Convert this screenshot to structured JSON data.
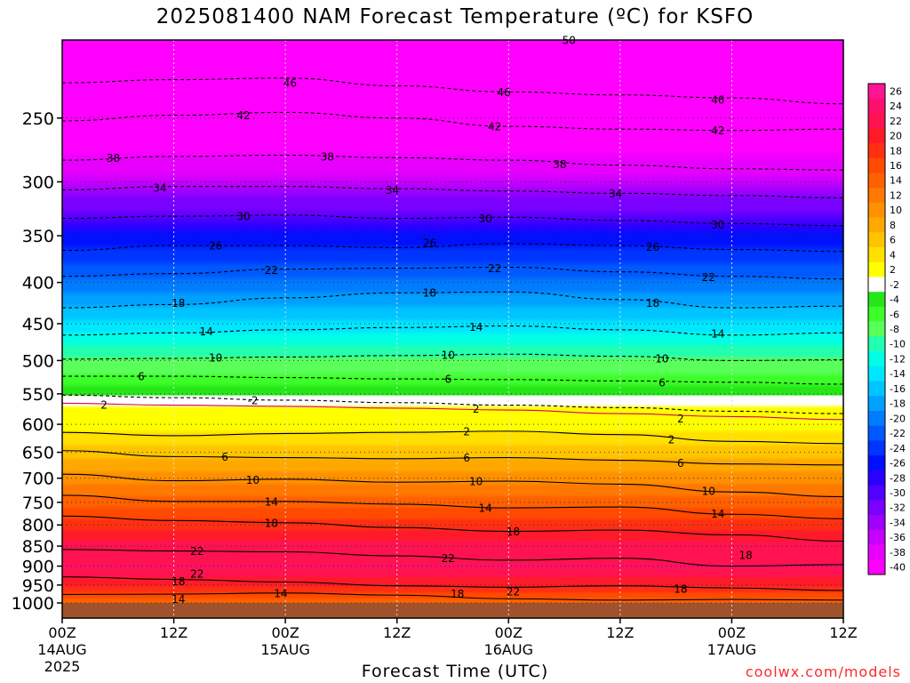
{
  "title": "2025081400 NAM Forecast Temperature (ºC) for KSFO",
  "credit": "coolwx.com/models",
  "chart_data": {
    "type": "heatmap",
    "title": "2025081400 NAM Forecast Temperature (ºC) for KSFO",
    "xlabel": "Forecast Time (UTC)",
    "ylabel": "",
    "x_range_hours": [
      0,
      84
    ],
    "y_range_hpa": [
      200,
      1000
    ],
    "y_scale": "log",
    "x_ticks": [
      {
        "hour": 0,
        "lines": [
          "00Z",
          "14AUG",
          "2025"
        ]
      },
      {
        "hour": 12,
        "lines": [
          "12Z"
        ]
      },
      {
        "hour": 24,
        "lines": [
          "00Z",
          "15AUG"
        ]
      },
      {
        "hour": 36,
        "lines": [
          "12Z"
        ]
      },
      {
        "hour": 48,
        "lines": [
          "00Z",
          "16AUG"
        ]
      },
      {
        "hour": 60,
        "lines": [
          "12Z"
        ]
      },
      {
        "hour": 72,
        "lines": [
          "00Z",
          "17AUG"
        ]
      },
      {
        "hour": 84,
        "lines": [
          "12Z"
        ]
      }
    ],
    "y_ticks": [
      250,
      300,
      350,
      400,
      450,
      500,
      550,
      600,
      650,
      700,
      750,
      800,
      850,
      900,
      950,
      1000
    ],
    "isotherms": [
      {
        "value": 50,
        "p": [
          200,
          200,
          199,
          198,
          199,
          200,
          199,
          198
        ]
      },
      {
        "value": 46,
        "p": [
          226,
          224,
          223,
          228,
          232,
          234,
          236,
          240
        ]
      },
      {
        "value": 42,
        "p": [
          252,
          248,
          246,
          250,
          256,
          258,
          259,
          258
        ]
      },
      {
        "value": 38,
        "p": [
          282,
          279,
          278,
          280,
          282,
          286,
          289,
          290
        ]
      },
      {
        "value": 34,
        "p": [
          307,
          304,
          304,
          306,
          308,
          310,
          312,
          314
        ]
      },
      {
        "value": 30,
        "p": [
          333,
          331,
          330,
          333,
          332,
          335,
          338,
          340
        ]
      },
      {
        "value": 26,
        "p": [
          365,
          360,
          360,
          362,
          358,
          360,
          364,
          366
        ]
      },
      {
        "value": 22,
        "p": [
          393,
          390,
          385,
          384,
          383,
          388,
          393,
          396
        ]
      },
      {
        "value": 18,
        "p": [
          430,
          426,
          418,
          412,
          411,
          420,
          430,
          428
        ]
      },
      {
        "value": 14,
        "p": [
          465,
          462,
          458,
          455,
          453,
          458,
          465,
          462
        ]
      },
      {
        "value": 10,
        "p": [
          498,
          497,
          495,
          493,
          491,
          494,
          500,
          499
        ]
      },
      {
        "value": 6,
        "p": [
          523,
          523,
          525,
          527,
          528,
          530,
          532,
          535
        ]
      },
      {
        "value": 2,
        "p": [
          565,
          568,
          570,
          573,
          576,
          582,
          587,
          592
        ]
      },
      {
        "value": -2,
        "p": [
          552,
          556,
          560,
          564,
          568,
          572,
          578,
          582
        ]
      },
      {
        "value": 2,
        "p": [
          614,
          620,
          616,
          614,
          612,
          618,
          630,
          634
        ]
      },
      {
        "value": 6,
        "p": [
          647,
          658,
          660,
          662,
          660,
          665,
          672,
          674
        ]
      },
      {
        "value": 10,
        "p": [
          692,
          705,
          702,
          708,
          706,
          712,
          728,
          738
        ]
      },
      {
        "value": 14,
        "p": [
          735,
          748,
          748,
          754,
          762,
          760,
          776,
          786
        ]
      },
      {
        "value": 18,
        "p": [
          780,
          790,
          795,
          806,
          815,
          812,
          823,
          838
        ]
      },
      {
        "value": 22,
        "p": [
          858,
          862,
          864,
          874,
          885,
          880,
          900,
          896
        ]
      },
      {
        "value": 18,
        "p": [
          928,
          935,
          942,
          952,
          956,
          952,
          958,
          965
        ]
      },
      {
        "value": 14,
        "p": [
          976,
          975,
          972,
          978,
          988,
          992,
          990,
          992
        ]
      }
    ],
    "isotherm_x_hours": [
      0,
      12,
      24,
      36,
      48,
      60,
      72,
      84
    ],
    "contour_labels": [
      {
        "text": "50",
        "hour": 54.5,
        "p": 200
      },
      {
        "text": "46",
        "hour": 24.5,
        "p": 226
      },
      {
        "text": "46",
        "hour": 47.5,
        "p": 232
      },
      {
        "text": "46",
        "hour": 70.5,
        "p": 237
      },
      {
        "text": "42",
        "hour": 19.5,
        "p": 248
      },
      {
        "text": "42",
        "hour": 46.5,
        "p": 256
      },
      {
        "text": "42",
        "hour": 70.5,
        "p": 259
      },
      {
        "text": "38",
        "hour": 5.5,
        "p": 280
      },
      {
        "text": "38",
        "hour": 28.5,
        "p": 279
      },
      {
        "text": "38",
        "hour": 53.5,
        "p": 285
      },
      {
        "text": "34",
        "hour": 10.5,
        "p": 305
      },
      {
        "text": "34",
        "hour": 35.5,
        "p": 307
      },
      {
        "text": "34",
        "hour": 59.5,
        "p": 310
      },
      {
        "text": "30",
        "hour": 19.5,
        "p": 331
      },
      {
        "text": "30",
        "hour": 45.5,
        "p": 333
      },
      {
        "text": "30",
        "hour": 70.5,
        "p": 339
      },
      {
        "text": "26",
        "hour": 16.5,
        "p": 360
      },
      {
        "text": "26",
        "hour": 39.5,
        "p": 357
      },
      {
        "text": "26",
        "hour": 63.5,
        "p": 361
      },
      {
        "text": "22",
        "hour": 22.5,
        "p": 386
      },
      {
        "text": "22",
        "hour": 46.5,
        "p": 384
      },
      {
        "text": "22",
        "hour": 69.5,
        "p": 394
      },
      {
        "text": "18",
        "hour": 12.5,
        "p": 424
      },
      {
        "text": "18",
        "hour": 39.5,
        "p": 412
      },
      {
        "text": "18",
        "hour": 63.5,
        "p": 424
      },
      {
        "text": "14",
        "hour": 15.5,
        "p": 460
      },
      {
        "text": "14",
        "hour": 44.5,
        "p": 454
      },
      {
        "text": "14",
        "hour": 70.5,
        "p": 463
      },
      {
        "text": "10",
        "hour": 16.5,
        "p": 496
      },
      {
        "text": "10",
        "hour": 41.5,
        "p": 492
      },
      {
        "text": "10",
        "hour": 64.5,
        "p": 497
      },
      {
        "text": "6",
        "hour": 8.5,
        "p": 523
      },
      {
        "text": "6",
        "hour": 41.5,
        "p": 527
      },
      {
        "text": "6",
        "hour": 64.5,
        "p": 532
      },
      {
        "text": "-2",
        "hour": 20.5,
        "p": 560
      },
      {
        "text": "2",
        "hour": 44.5,
        "p": 574
      },
      {
        "text": "2",
        "hour": 66.5,
        "p": 590
      },
      {
        "text": "2",
        "hour": 4.5,
        "p": 567
      },
      {
        "text": "2",
        "hour": 43.5,
        "p": 612
      },
      {
        "text": "2",
        "hour": 65.5,
        "p": 626
      },
      {
        "text": "6",
        "hour": 17.5,
        "p": 658
      },
      {
        "text": "6",
        "hour": 43.5,
        "p": 660
      },
      {
        "text": "6",
        "hour": 66.5,
        "p": 670
      },
      {
        "text": "10",
        "hour": 20.5,
        "p": 703
      },
      {
        "text": "10",
        "hour": 44.5,
        "p": 706
      },
      {
        "text": "10",
        "hour": 69.5,
        "p": 726
      },
      {
        "text": "14",
        "hour": 22.5,
        "p": 748
      },
      {
        "text": "14",
        "hour": 45.5,
        "p": 762
      },
      {
        "text": "14",
        "hour": 70.5,
        "p": 775
      },
      {
        "text": "18",
        "hour": 22.5,
        "p": 795
      },
      {
        "text": "18",
        "hour": 48.5,
        "p": 815
      },
      {
        "text": "18",
        "hour": 73.5,
        "p": 872
      },
      {
        "text": "22",
        "hour": 14.5,
        "p": 862
      },
      {
        "text": "22",
        "hour": 41.5,
        "p": 880
      },
      {
        "text": "22",
        "hour": 14.5,
        "p": 920
      },
      {
        "text": "18",
        "hour": 12.5,
        "p": 940
      },
      {
        "text": "22",
        "hour": 48.5,
        "p": 968
      },
      {
        "text": "18",
        "hour": 42.5,
        "p": 974
      },
      {
        "text": "18",
        "hour": 66.5,
        "p": 960
      },
      {
        "text": "14",
        "hour": 23.5,
        "p": 972
      },
      {
        "text": "14",
        "hour": 12.5,
        "p": 988
      }
    ],
    "colorbar": {
      "levels": [
        "26",
        "24",
        "22",
        "20",
        "18",
        "16",
        "14",
        "12",
        "10",
        "8",
        "6",
        "4",
        "2",
        "-2",
        "-4",
        "-6",
        "-8",
        "-10",
        "-12",
        "-14",
        "-16",
        "-18",
        "-20",
        "-22",
        "-24",
        "-26",
        "-28",
        "-30",
        "-32",
        "-34",
        "-36",
        "-38",
        "-40"
      ],
      "colors": [
        "#ff1493",
        "#ff0f6c",
        "#ff1250",
        "#ff1a2a",
        "#ff2f12",
        "#ff4a00",
        "#ff6000",
        "#ff7800",
        "#ff9000",
        "#ffa800",
        "#ffc400",
        "#ffe000",
        "#ffff00",
        "#ffffff",
        "#26e61a",
        "#3cff28",
        "#5aff5a",
        "#22ffb0",
        "#00ffe6",
        "#00e6ff",
        "#00c4ff",
        "#00a0ff",
        "#007cff",
        "#0058ff",
        "#0034ff",
        "#0010ff",
        "#2a00ff",
        "#5200ff",
        "#7a00ff",
        "#a000ff",
        "#c800ff",
        "#e800ff",
        "#ff00ff"
      ]
    },
    "temperature_profile": {
      "p": [
        200,
        250,
        300,
        350,
        400,
        450,
        500,
        550,
        560,
        600,
        650,
        700,
        750,
        800,
        850,
        900,
        950,
        1000
      ],
      "temp": [
        -50,
        -43,
        -36,
        -27,
        -21,
        -15,
        -9,
        -4,
        -1,
        2,
        6,
        10,
        14,
        18,
        22,
        23,
        19,
        14
      ]
    },
    "ground_pressure_hpa": 1000,
    "grid": true
  }
}
